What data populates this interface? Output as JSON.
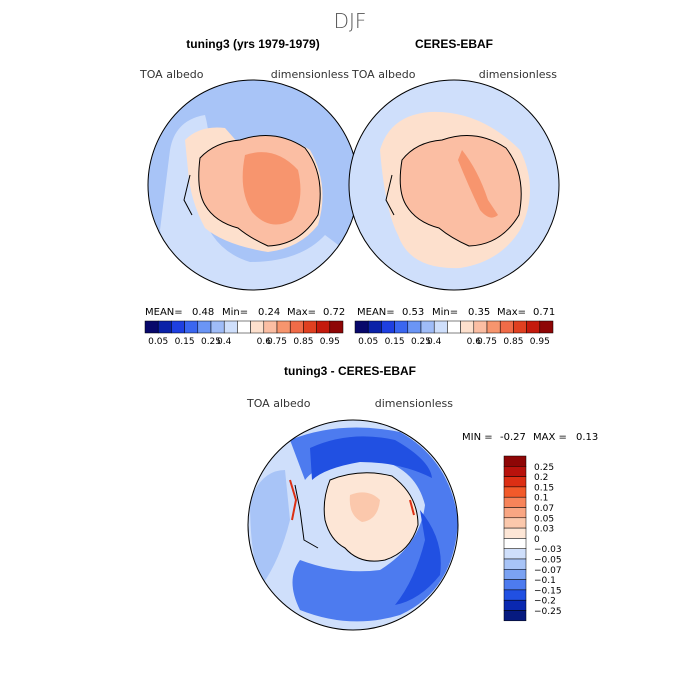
{
  "page": {
    "title": "DJF"
  },
  "chart_data": [
    {
      "type": "heatmap",
      "id": "panel1",
      "title": "tuning3 (yrs 1979-1979)",
      "variable": "TOA albedo",
      "units": "dimensionless",
      "projection": "south-polar-stereographic",
      "stats": {
        "mean_label": "MEAN=",
        "mean": "0.48",
        "min_label": "Min=",
        "min": "0.24",
        "max_label": "Max=",
        "max": "0.72"
      },
      "colorbar": {
        "ticks": [
          "0.05",
          "0.15",
          "0.25",
          "0.4",
          "0.6",
          "0.75",
          "0.85",
          "0.95"
        ],
        "colors": [
          "#08086b",
          "#0a21a8",
          "#1e3fe0",
          "#3a66f0",
          "#6b95f5",
          "#9fbcf7",
          "#cfdffb",
          "#ffffff",
          "#fde0cd",
          "#fbbea3",
          "#f7956e",
          "#f06b48",
          "#e04020",
          "#c41a0c",
          "#8e0606"
        ]
      },
      "regions": {
        "ocean_low": 0.3,
        "ocean_mid": 0.45,
        "sea_ice": 0.55,
        "antarctic_interior": 0.72,
        "antarctic_coast": 0.65
      }
    },
    {
      "type": "heatmap",
      "id": "panel2",
      "title": "CERES-EBAF",
      "variable": "TOA albedo",
      "units": "dimensionless",
      "projection": "south-polar-stereographic",
      "stats": {
        "mean_label": "MEAN=",
        "mean": "0.53",
        "min_label": "Min=",
        "min": "0.35",
        "max_label": "Max=",
        "max": "0.71"
      },
      "colorbar": {
        "ticks": [
          "0.05",
          "0.15",
          "0.25",
          "0.4",
          "0.6",
          "0.75",
          "0.85",
          "0.95"
        ],
        "colors": [
          "#08086b",
          "#0a21a8",
          "#1e3fe0",
          "#3a66f0",
          "#6b95f5",
          "#9fbcf7",
          "#cfdffb",
          "#ffffff",
          "#fde0cd",
          "#fbbea3",
          "#f7956e",
          "#f06b48",
          "#e04020",
          "#c41a0c",
          "#8e0606"
        ]
      },
      "regions": {
        "ocean_low": 0.45,
        "ocean_mid": 0.48,
        "sea_ice": 0.6,
        "antarctic_interior": 0.7,
        "antarctic_coast": 0.68
      }
    },
    {
      "type": "heatmap",
      "id": "panel3",
      "title": "tuning3 - CERES-EBAF",
      "variable": "TOA albedo",
      "units": "dimensionless",
      "projection": "south-polar-stereographic",
      "stats": {
        "min_label": "MIN =",
        "min": "-0.27",
        "max_label": "MAX =",
        "max": "0.13"
      },
      "colorbar": {
        "labels": [
          "0.25",
          "0.2",
          "0.15",
          "0.1",
          "0.07",
          "0.05",
          "0.03",
          "0",
          "−0.03",
          "−0.05",
          "−0.07",
          "−0.1",
          "−0.15",
          "−0.2",
          "−0.25"
        ],
        "colors": [
          "#8e0606",
          "#b8120c",
          "#dc2f14",
          "#f25a2a",
          "#f7845a",
          "#f9a683",
          "#fbc8ac",
          "#fde6d6",
          "#ffffff",
          "#cfdffb",
          "#a8c4f7",
          "#7ba2f3",
          "#4d7bef",
          "#2150e2",
          "#0a28b0",
          "#061a80"
        ]
      },
      "regions": {
        "ocean_ring": -0.15,
        "open_ocean": -0.03,
        "antarctic_interior": 0.03,
        "coast_positive": 0.13,
        "min_zone": -0.27
      }
    }
  ]
}
